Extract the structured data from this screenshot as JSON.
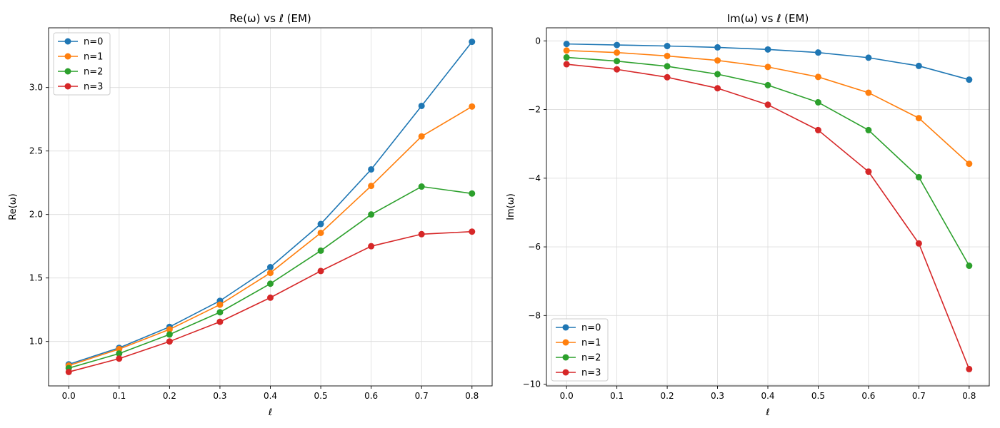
{
  "chart_data": [
    {
      "type": "line",
      "title": "Re(ω) vs ℓ (EM)",
      "xlabel": "ℓ",
      "ylabel": "Re(ω)",
      "xlim": [
        -0.04,
        0.84
      ],
      "ylim": [
        0.65,
        3.47
      ],
      "xticks": [
        0.0,
        0.1,
        0.2,
        0.3,
        0.4,
        0.5,
        0.6,
        0.7,
        0.8
      ],
      "xtick_labels": [
        "0.0",
        "0.1",
        "0.2",
        "0.3",
        "0.4",
        "0.5",
        "0.6",
        "0.7",
        "0.8"
      ],
      "yticks": [
        1.0,
        1.5,
        2.0,
        2.5,
        3.0
      ],
      "ytick_labels": [
        "1.0",
        "1.5",
        "2.0",
        "2.5",
        "3.0"
      ],
      "grid": true,
      "legend_position": "top-left",
      "x": [
        0.0,
        0.1,
        0.2,
        0.3,
        0.4,
        0.5,
        0.6,
        0.7,
        0.8
      ],
      "series": [
        {
          "name": "n=0",
          "color": "#1f77b4",
          "values": [
            0.82,
            0.95,
            1.115,
            1.32,
            1.585,
            1.925,
            2.355,
            2.855,
            3.36
          ]
        },
        {
          "name": "n=1",
          "color": "#ff7f0e",
          "values": [
            0.81,
            0.94,
            1.095,
            1.29,
            1.54,
            1.855,
            2.225,
            2.615,
            2.85
          ]
        },
        {
          "name": "n=2",
          "color": "#2ca02c",
          "values": [
            0.79,
            0.905,
            1.055,
            1.23,
            1.455,
            1.715,
            2.0,
            2.22,
            2.165
          ]
        },
        {
          "name": "n=3",
          "color": "#d62728",
          "values": [
            0.76,
            0.865,
            1.0,
            1.155,
            1.345,
            1.555,
            1.75,
            1.845,
            1.865
          ]
        }
      ]
    },
    {
      "type": "line",
      "title": "Im(ω) vs ℓ (EM)",
      "xlabel": "ℓ",
      "ylabel": "Im(ω)",
      "xlim": [
        -0.04,
        0.84
      ],
      "ylim": [
        -10.05,
        0.38
      ],
      "xticks": [
        0.0,
        0.1,
        0.2,
        0.3,
        0.4,
        0.5,
        0.6,
        0.7,
        0.8
      ],
      "xtick_labels": [
        "0.0",
        "0.1",
        "0.2",
        "0.3",
        "0.4",
        "0.5",
        "0.6",
        "0.7",
        "0.8"
      ],
      "yticks": [
        0,
        -2,
        -4,
        -6,
        -8,
        -10
      ],
      "ytick_labels": [
        "0",
        "−2",
        "−4",
        "−6",
        "−8",
        "−10"
      ],
      "grid": true,
      "legend_position": "bottom-left",
      "x": [
        0.0,
        0.1,
        0.2,
        0.3,
        0.4,
        0.5,
        0.6,
        0.7,
        0.8
      ],
      "series": [
        {
          "name": "n=0",
          "color": "#1f77b4",
          "values": [
            -0.09,
            -0.12,
            -0.15,
            -0.19,
            -0.25,
            -0.34,
            -0.49,
            -0.73,
            -1.13
          ]
        },
        {
          "name": "n=1",
          "color": "#ff7f0e",
          "values": [
            -0.28,
            -0.34,
            -0.44,
            -0.57,
            -0.76,
            -1.05,
            -1.51,
            -2.25,
            -3.58
          ]
        },
        {
          "name": "n=2",
          "color": "#2ca02c",
          "values": [
            -0.48,
            -0.59,
            -0.74,
            -0.97,
            -1.29,
            -1.79,
            -2.6,
            -3.97,
            -6.55
          ]
        },
        {
          "name": "n=3",
          "color": "#d62728",
          "values": [
            -0.68,
            -0.83,
            -1.06,
            -1.38,
            -1.86,
            -2.6,
            -3.81,
            -5.9,
            -9.56
          ]
        }
      ]
    }
  ]
}
